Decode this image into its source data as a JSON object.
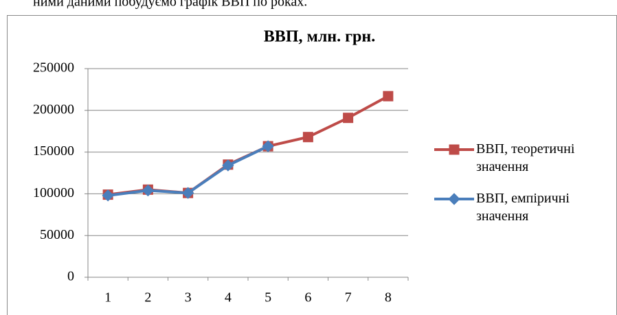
{
  "header_text": "ними даними побудуємо графік ВВП по роках.",
  "chart_data": {
    "type": "line",
    "title": "ВВП, млн. грн.",
    "categories": [
      1,
      2,
      3,
      4,
      5,
      6,
      7,
      8
    ],
    "series": [
      {
        "name": "ВВП, теоретичні значення",
        "color": "#be4b48",
        "marker": "square",
        "values": [
          99000,
          105000,
          101000,
          135000,
          157000,
          168000,
          191000,
          217000
        ]
      },
      {
        "name": "ВВП, емпіричні значення",
        "color": "#4a7ebb",
        "marker": "diamond",
        "values": [
          98000,
          104000,
          101000,
          134000,
          157000,
          null,
          null,
          null
        ]
      }
    ],
    "ylim": [
      0,
      250000
    ],
    "yticks": [
      0,
      50000,
      100000,
      150000,
      200000,
      250000
    ],
    "grid": true,
    "legend": "right"
  }
}
